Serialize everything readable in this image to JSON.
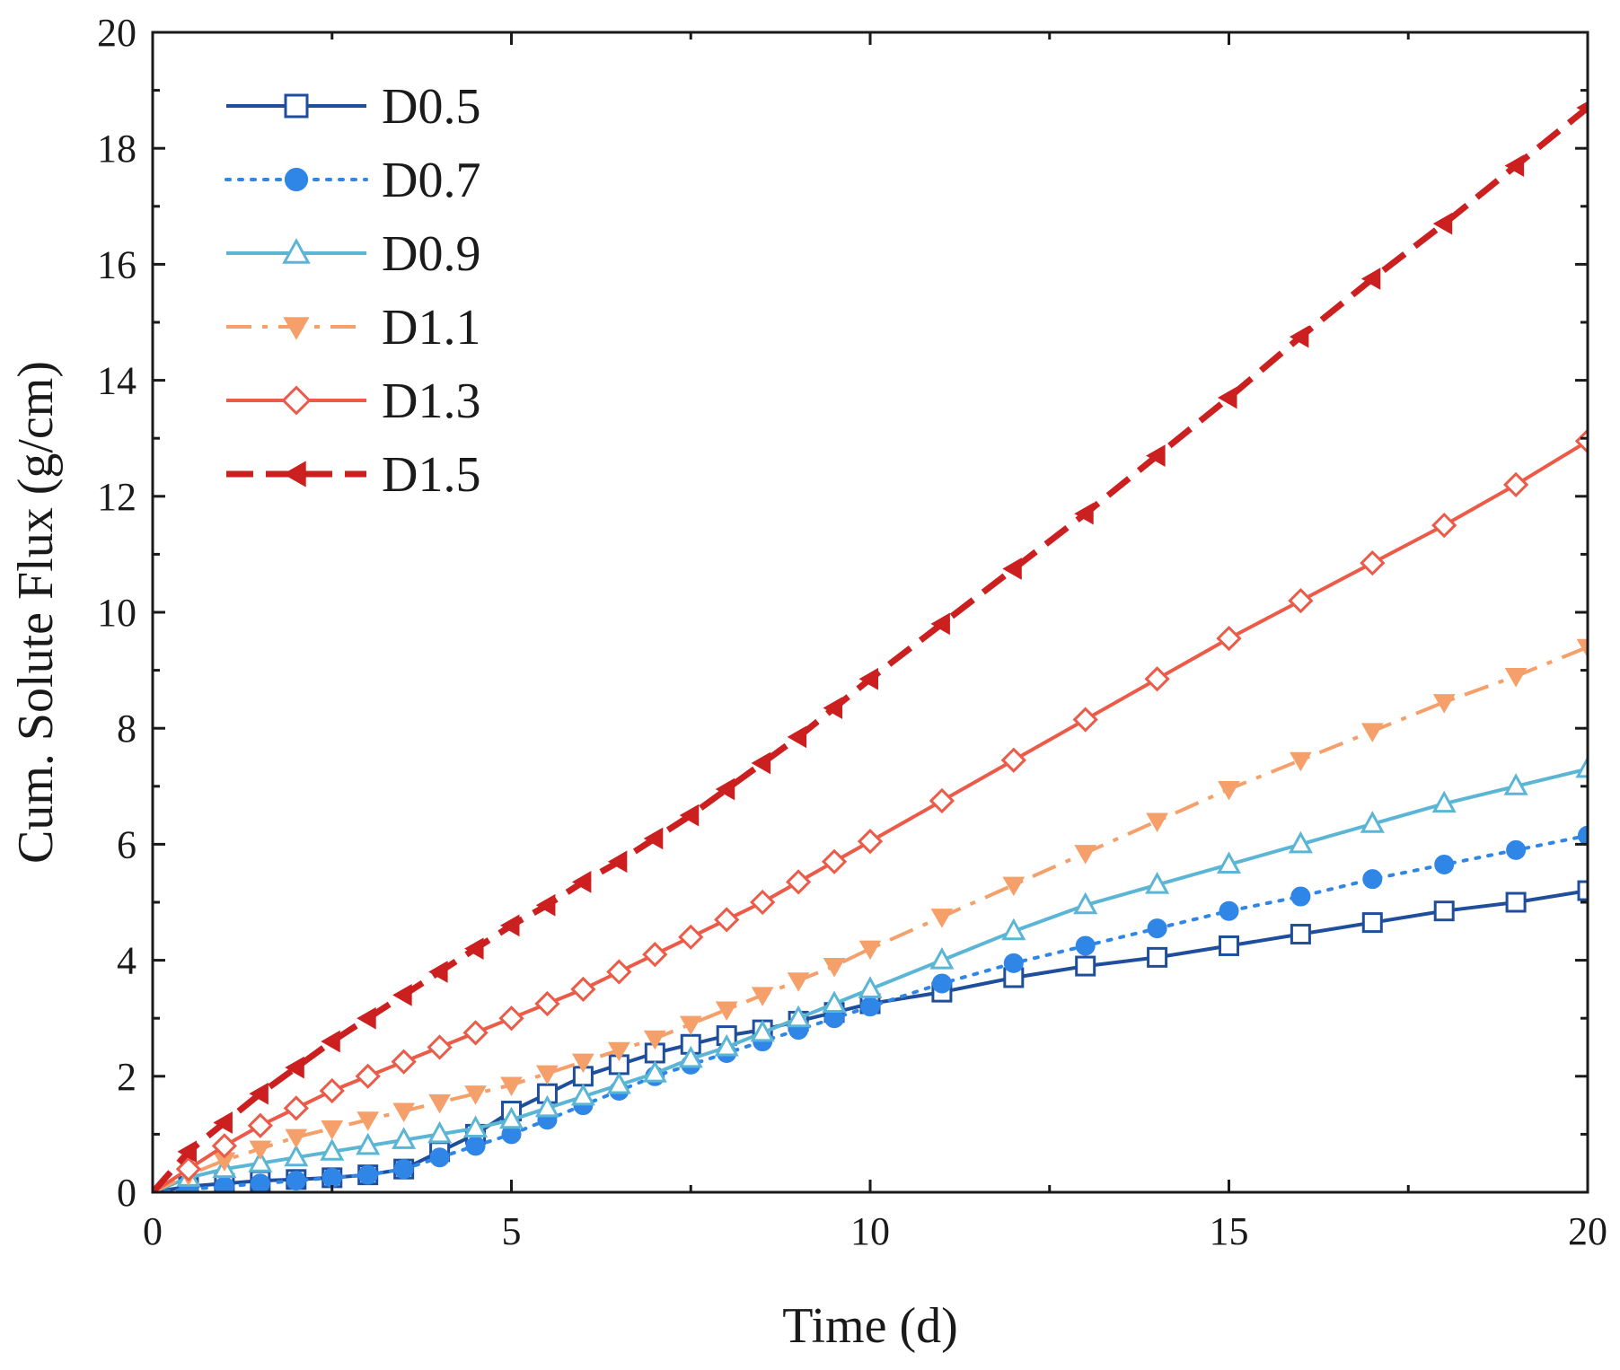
{
  "chart_data": {
    "type": "line",
    "title": "",
    "xlabel": "Time (d)",
    "ylabel": "Cum. Solute Flux (g/cm)",
    "xlim": [
      0,
      20
    ],
    "ylim": [
      0,
      20
    ],
    "xticks": [
      0,
      5,
      10,
      15,
      20
    ],
    "yticks": [
      0,
      2,
      4,
      6,
      8,
      10,
      12,
      14,
      16,
      18,
      20
    ],
    "grid": false,
    "legend_position": "top-left",
    "series": [
      {
        "name": "D0.5",
        "color": "#1f4e9c",
        "line_style": "solid",
        "marker": "square-open",
        "x": [
          0,
          0.5,
          1,
          1.5,
          2,
          2.5,
          3,
          3.5,
          4,
          4.5,
          5,
          5.5,
          6,
          6.5,
          7,
          7.5,
          8,
          8.5,
          9,
          9.5,
          10,
          11,
          12,
          13,
          14,
          15,
          16,
          17,
          18,
          19,
          20
        ],
        "y": [
          0,
          0.1,
          0.15,
          0.2,
          0.22,
          0.25,
          0.3,
          0.4,
          0.7,
          1.0,
          1.4,
          1.7,
          2.0,
          2.2,
          2.4,
          2.55,
          2.7,
          2.8,
          2.95,
          3.1,
          3.25,
          3.45,
          3.7,
          3.9,
          4.05,
          4.25,
          4.45,
          4.65,
          4.85,
          5.0,
          5.2
        ]
      },
      {
        "name": "D0.7",
        "color": "#2f86e6",
        "line_style": "dotted",
        "marker": "circle-filled",
        "x": [
          0,
          0.5,
          1,
          1.5,
          2,
          2.5,
          3,
          3.5,
          4,
          4.5,
          5,
          5.5,
          6,
          6.5,
          7,
          7.5,
          8,
          8.5,
          9,
          9.5,
          10,
          11,
          12,
          13,
          14,
          15,
          16,
          17,
          18,
          19,
          20
        ],
        "y": [
          0,
          0.05,
          0.1,
          0.15,
          0.2,
          0.25,
          0.3,
          0.4,
          0.6,
          0.8,
          1.0,
          1.25,
          1.5,
          1.75,
          2.0,
          2.2,
          2.4,
          2.6,
          2.8,
          3.0,
          3.2,
          3.6,
          3.95,
          4.25,
          4.55,
          4.85,
          5.1,
          5.4,
          5.65,
          5.9,
          6.15
        ]
      },
      {
        "name": "D0.9",
        "color": "#5bb5d5",
        "line_style": "solid",
        "marker": "triangle-up-open",
        "x": [
          0,
          0.5,
          1,
          1.5,
          2,
          2.5,
          3,
          3.5,
          4,
          4.5,
          5,
          5.5,
          6,
          6.5,
          7,
          7.5,
          8,
          8.5,
          9,
          9.5,
          10,
          11,
          12,
          13,
          14,
          15,
          16,
          17,
          18,
          19,
          20
        ],
        "y": [
          0,
          0.25,
          0.4,
          0.5,
          0.6,
          0.7,
          0.8,
          0.9,
          1.0,
          1.1,
          1.25,
          1.45,
          1.65,
          1.85,
          2.05,
          2.3,
          2.5,
          2.75,
          3.0,
          3.25,
          3.5,
          4.0,
          4.5,
          4.95,
          5.3,
          5.65,
          6.0,
          6.35,
          6.7,
          7.0,
          7.3
        ]
      },
      {
        "name": "D1.1",
        "color": "#f5a06a",
        "line_style": "dashdot",
        "marker": "triangle-down-filled",
        "x": [
          0,
          0.5,
          1,
          1.5,
          2,
          2.5,
          3,
          3.5,
          4,
          4.5,
          5,
          5.5,
          6,
          6.5,
          7,
          7.5,
          8,
          8.5,
          9,
          9.5,
          10,
          11,
          12,
          13,
          14,
          15,
          16,
          17,
          18,
          19,
          20
        ],
        "y": [
          0,
          0.3,
          0.55,
          0.75,
          0.95,
          1.1,
          1.25,
          1.4,
          1.55,
          1.7,
          1.85,
          2.05,
          2.25,
          2.45,
          2.65,
          2.9,
          3.15,
          3.4,
          3.65,
          3.9,
          4.2,
          4.75,
          5.3,
          5.85,
          6.4,
          6.95,
          7.45,
          7.95,
          8.45,
          8.9,
          9.4
        ]
      },
      {
        "name": "D1.3",
        "color": "#ec5a48",
        "line_style": "solid",
        "marker": "diamond-open",
        "x": [
          0,
          0.5,
          1,
          1.5,
          2,
          2.5,
          3,
          3.5,
          4,
          4.5,
          5,
          5.5,
          6,
          6.5,
          7,
          7.5,
          8,
          8.5,
          9,
          9.5,
          10,
          11,
          12,
          13,
          14,
          15,
          16,
          17,
          18,
          19,
          20
        ],
        "y": [
          0,
          0.4,
          0.8,
          1.15,
          1.45,
          1.75,
          2.0,
          2.25,
          2.5,
          2.75,
          3.0,
          3.25,
          3.5,
          3.8,
          4.1,
          4.4,
          4.7,
          5.0,
          5.35,
          5.7,
          6.05,
          6.75,
          7.45,
          8.15,
          8.85,
          9.55,
          10.2,
          10.85,
          11.5,
          12.2,
          12.95
        ]
      },
      {
        "name": "D1.5",
        "color": "#cc1f1f",
        "line_style": "dashed",
        "marker": "triangle-left-filled",
        "x": [
          0,
          0.5,
          1,
          1.5,
          2,
          2.5,
          3,
          3.5,
          4,
          4.5,
          5,
          5.5,
          6,
          6.5,
          7,
          7.5,
          8,
          8.5,
          9,
          9.5,
          10,
          11,
          12,
          13,
          14,
          15,
          16,
          17,
          18,
          19,
          20
        ],
        "y": [
          0,
          0.7,
          1.2,
          1.7,
          2.15,
          2.6,
          3.0,
          3.4,
          3.8,
          4.2,
          4.6,
          4.95,
          5.35,
          5.7,
          6.1,
          6.5,
          6.95,
          7.4,
          7.85,
          8.35,
          8.85,
          9.8,
          10.75,
          11.7,
          12.7,
          13.7,
          14.75,
          15.75,
          16.7,
          17.7,
          18.7
        ]
      }
    ]
  }
}
